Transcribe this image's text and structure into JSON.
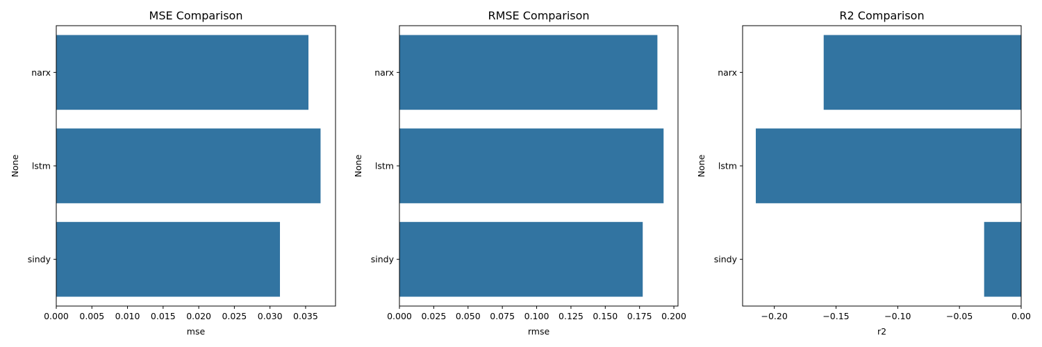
{
  "colors": {
    "bar": "#3274a1",
    "axis": "#000000",
    "background": "#ffffff"
  },
  "chart_data": [
    {
      "type": "bar",
      "orientation": "horizontal",
      "title": "MSE Comparison",
      "xlabel": "mse",
      "ylabel": "None",
      "categories": [
        "narx",
        "lstm",
        "sindy"
      ],
      "values": [
        0.0354,
        0.0371,
        0.0314
      ],
      "xlim": [
        0,
        0.0392
      ],
      "xticks": [
        "0.000",
        "0.005",
        "0.010",
        "0.015",
        "0.020",
        "0.025",
        "0.030",
        "0.035"
      ],
      "grid": false,
      "legend": "none"
    },
    {
      "type": "bar",
      "orientation": "horizontal",
      "title": "RMSE Comparison",
      "xlabel": "rmse",
      "ylabel": "None",
      "categories": [
        "narx",
        "lstm",
        "sindy"
      ],
      "values": [
        0.188,
        0.1925,
        0.1773
      ],
      "xlim": [
        0,
        0.203
      ],
      "xticks": [
        "0.000",
        "0.025",
        "0.050",
        "0.075",
        "0.100",
        "0.125",
        "0.150",
        "0.175",
        "0.200"
      ],
      "grid": false,
      "legend": "none"
    },
    {
      "type": "bar",
      "orientation": "horizontal",
      "title": "R2 Comparison",
      "xlabel": "r2",
      "ylabel": "None",
      "categories": [
        "narx",
        "lstm",
        "sindy"
      ],
      "values": [
        -0.16,
        -0.215,
        -0.03
      ],
      "xlim": [
        -0.2257,
        0
      ],
      "xticks": [
        "−0.20",
        "−0.15",
        "−0.10",
        "−0.05",
        "0.00"
      ],
      "grid": false,
      "legend": "none"
    }
  ]
}
